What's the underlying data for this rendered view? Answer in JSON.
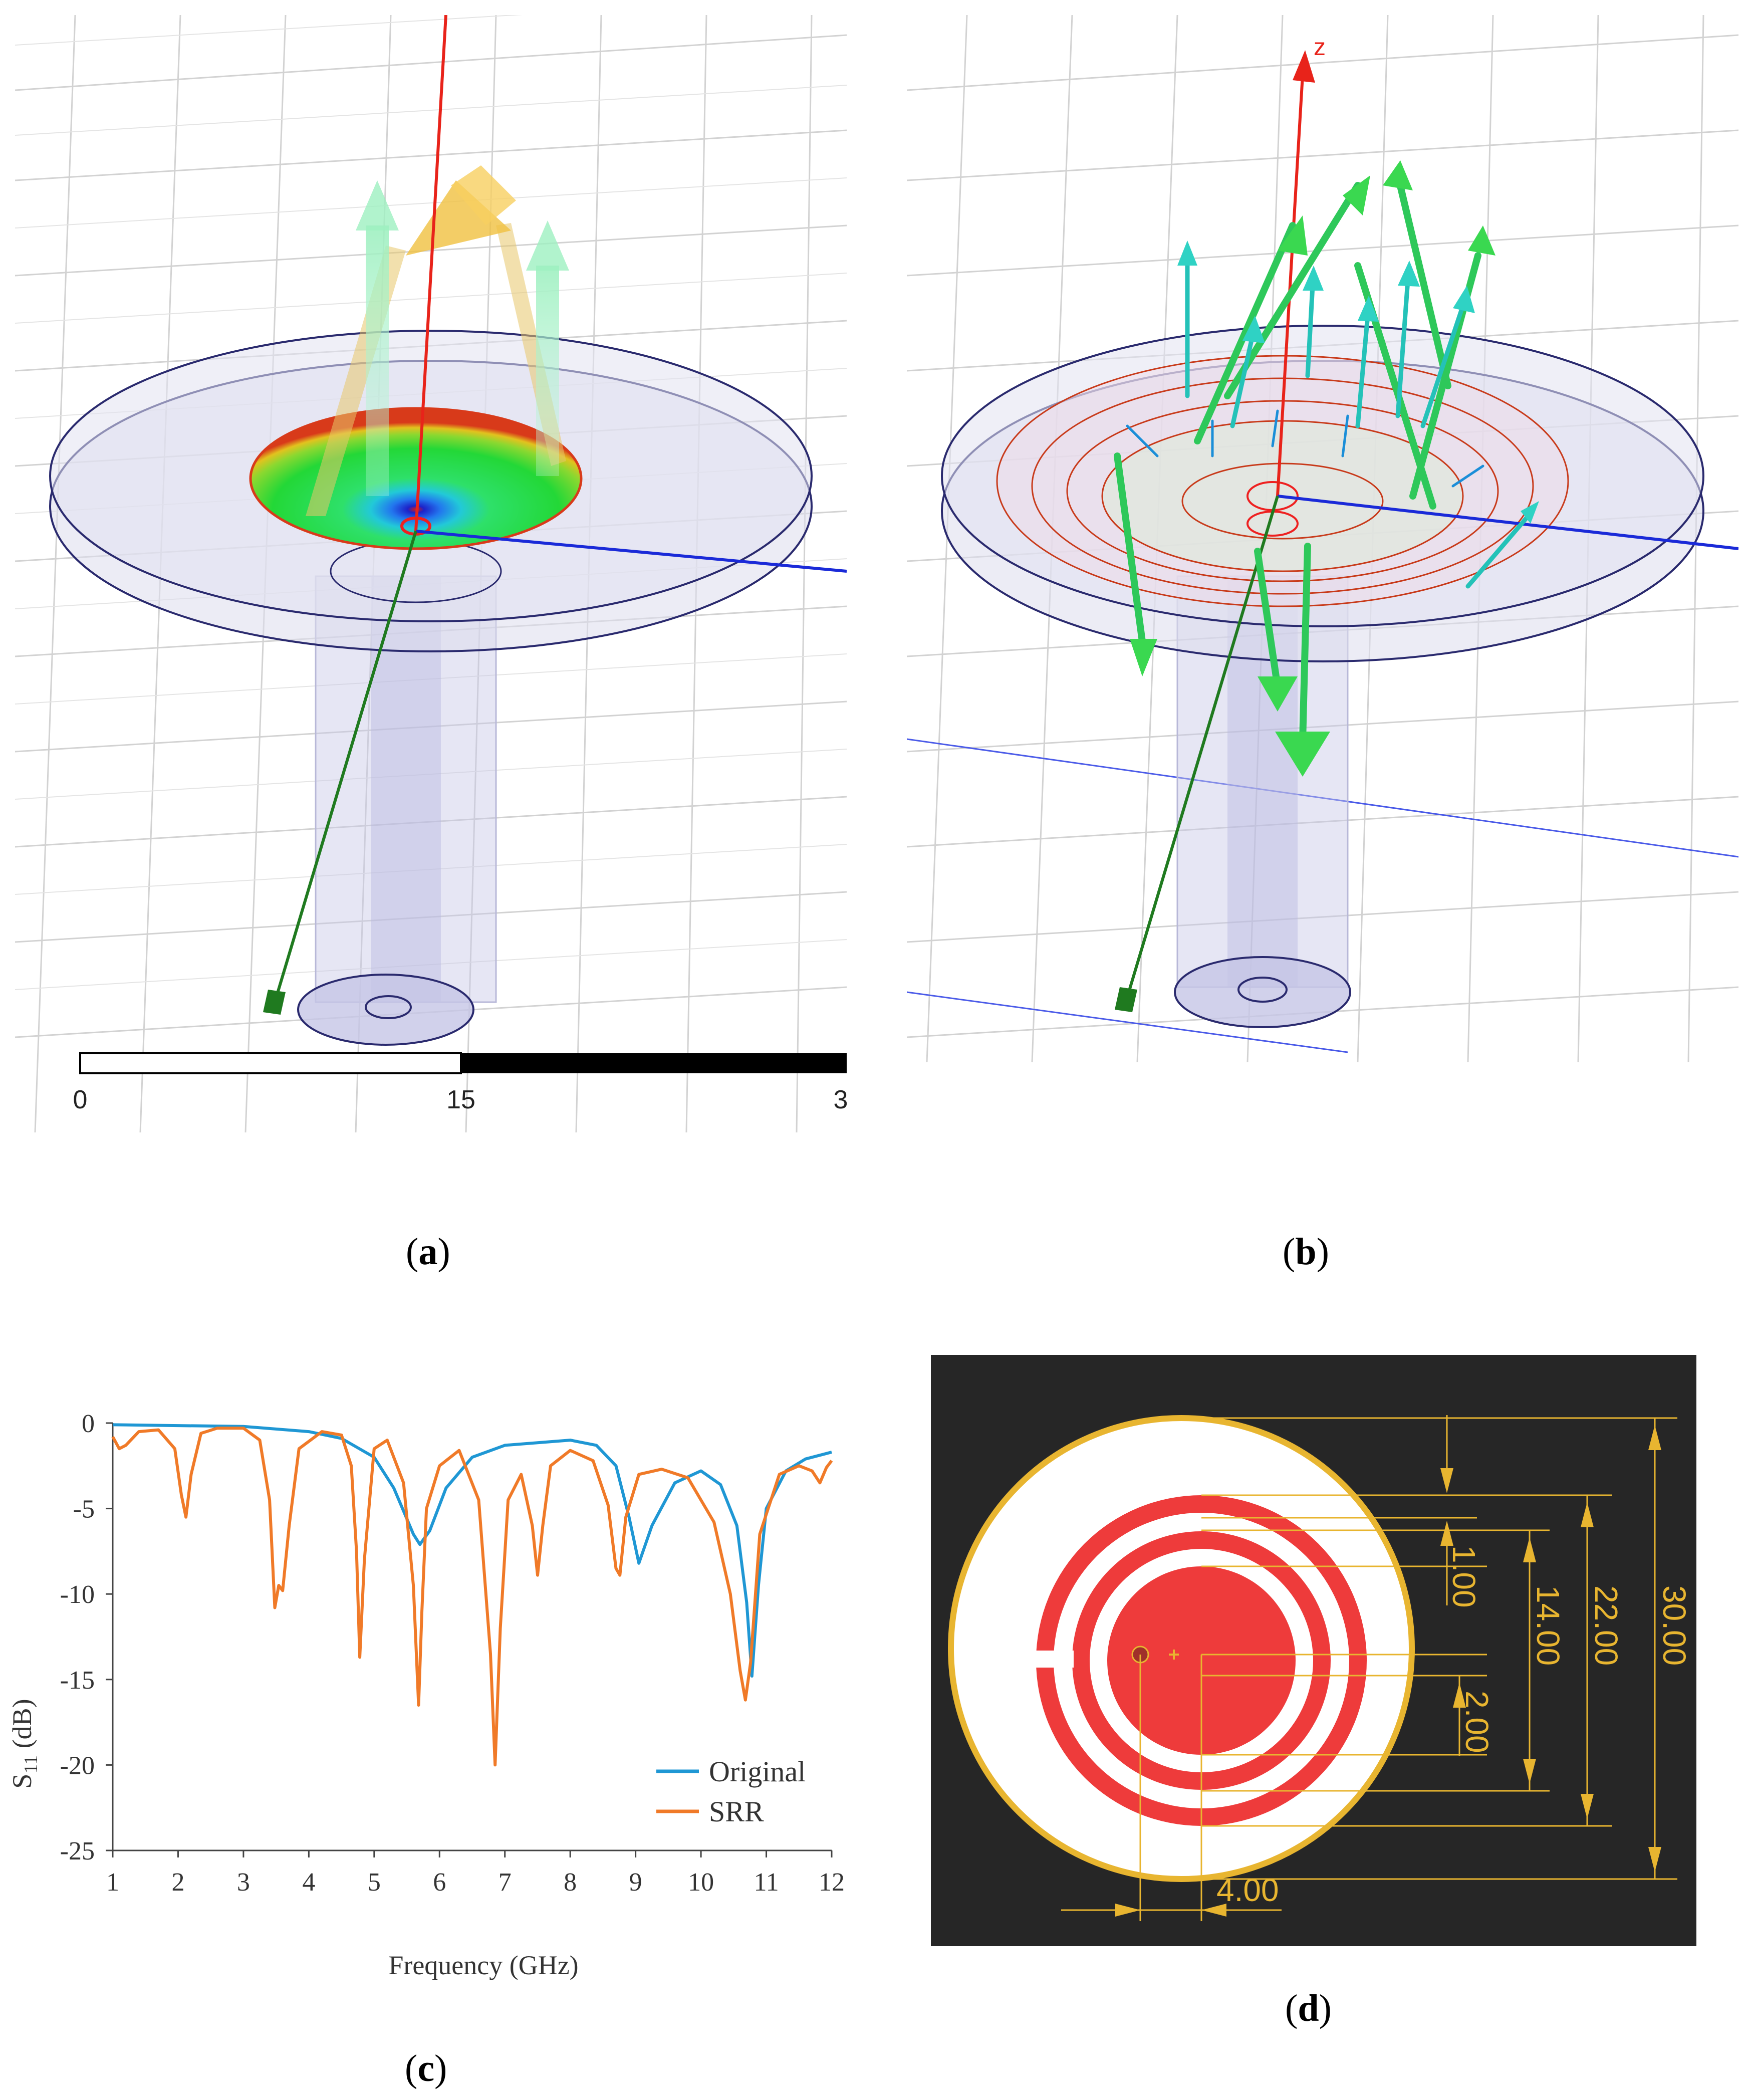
{
  "captions": {
    "a": "a",
    "b": "b",
    "c": "c",
    "d": "d"
  },
  "panel_a": {
    "scale_bar": {
      "labels": [
        "0",
        "15",
        "3"
      ]
    }
  },
  "panel_b": {
    "axis_label": "z"
  },
  "panel_d": {
    "dimension_labels": [
      "1.00",
      "14.00",
      "22.00",
      "30.00",
      "2.00",
      "4.00"
    ],
    "colors": {
      "background": "#262626",
      "ring": "#e8b530",
      "pattern": "#ee3b3b",
      "substrate": "#ffffff"
    }
  },
  "chart_data": {
    "type": "line",
    "xlabel": "Frequency (GHz)",
    "ylabel_main": "S",
    "ylabel_sub": "11",
    "ylabel_unit": " (dB)",
    "xlim": [
      1,
      12
    ],
    "ylim": [
      -25,
      0
    ],
    "x_ticks": [
      1,
      2,
      3,
      4,
      5,
      6,
      7,
      8,
      9,
      10,
      11,
      12
    ],
    "y_ticks": [
      0,
      -5,
      -10,
      -15,
      -20,
      -25
    ],
    "legend_position": "bottom-right",
    "series": [
      {
        "name": "Original",
        "color": "#1f97d4",
        "x": [
          1.0,
          2.0,
          3.0,
          4.0,
          4.5,
          5.0,
          5.3,
          5.6,
          5.7,
          5.85,
          6.1,
          6.5,
          7.0,
          8.0,
          8.4,
          8.7,
          8.9,
          9.05,
          9.25,
          9.6,
          10.0,
          10.3,
          10.55,
          10.7,
          10.78,
          10.88,
          11.0,
          11.3,
          11.6,
          12.0
        ],
        "y": [
          -0.1,
          -0.15,
          -0.2,
          -0.5,
          -0.9,
          -2.0,
          -3.8,
          -6.5,
          -7.1,
          -6.3,
          -3.8,
          -2.0,
          -1.3,
          -1.0,
          -1.3,
          -2.5,
          -5.5,
          -8.2,
          -6.0,
          -3.5,
          -2.8,
          -3.6,
          -6.0,
          -10.5,
          -14.8,
          -9.5,
          -5.0,
          -2.8,
          -2.1,
          -1.7
        ]
      },
      {
        "name": "SRR",
        "color": "#f07a28",
        "x": [
          1.0,
          1.1,
          1.2,
          1.4,
          1.7,
          1.95,
          2.05,
          2.12,
          2.2,
          2.35,
          2.6,
          3.0,
          3.25,
          3.4,
          3.48,
          3.54,
          3.6,
          3.7,
          3.85,
          4.2,
          4.5,
          4.65,
          4.73,
          4.78,
          4.85,
          5.0,
          5.2,
          5.45,
          5.6,
          5.68,
          5.73,
          5.8,
          6.0,
          6.3,
          6.6,
          6.78,
          6.85,
          6.93,
          7.05,
          7.25,
          7.42,
          7.5,
          7.58,
          7.7,
          8.0,
          8.35,
          8.58,
          8.7,
          8.76,
          8.85,
          9.05,
          9.4,
          9.8,
          10.2,
          10.45,
          10.6,
          10.68,
          10.76,
          10.9,
          11.2,
          11.5,
          11.7,
          11.82,
          11.92,
          12.0
        ],
        "y": [
          -0.8,
          -1.5,
          -1.3,
          -0.5,
          -0.4,
          -1.5,
          -4.2,
          -5.5,
          -3.0,
          -0.6,
          -0.3,
          -0.3,
          -1.0,
          -4.5,
          -10.8,
          -9.5,
          -9.8,
          -6.0,
          -1.5,
          -0.5,
          -0.7,
          -2.5,
          -7.5,
          -13.7,
          -8.0,
          -1.5,
          -1.0,
          -3.5,
          -9.5,
          -16.5,
          -11.0,
          -5.0,
          -2.5,
          -1.6,
          -4.5,
          -13.5,
          -20.0,
          -12.0,
          -4.5,
          -3.0,
          -6.0,
          -8.9,
          -6.0,
          -2.5,
          -1.6,
          -2.2,
          -4.8,
          -8.5,
          -8.9,
          -5.5,
          -3.0,
          -2.7,
          -3.2,
          -5.8,
          -10.0,
          -14.5,
          -16.2,
          -14.0,
          -6.5,
          -3.0,
          -2.5,
          -2.8,
          -3.5,
          -2.6,
          -2.2
        ]
      }
    ]
  }
}
